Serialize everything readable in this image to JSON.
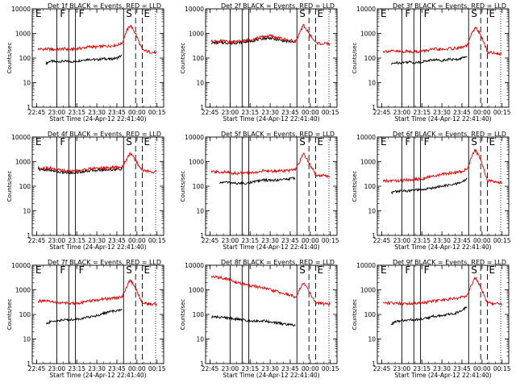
{
  "figure": {
    "x_axis_label": "Start Time (24-Apr-12 22:41:40)",
    "y_axis_label": "Counts/sec",
    "x_tick_labels": [
      "22:45",
      "23:00",
      "23:15",
      "23:30",
      "23:45",
      "00:00",
      "00:15"
    ],
    "y_tick_labels": [
      "1",
      "10",
      "100",
      "1000",
      "10000"
    ],
    "colors": {
      "events": "#000000",
      "lld": "#e00000",
      "background": "#ffffff"
    }
  },
  "chart_data": [
    {
      "type": "line",
      "title": "Det 1f BLACK = Events, RED = LLD",
      "xlabel": "Start Time (24-Apr-12 22:41:40)",
      "ylabel": "Counts/sec",
      "y_scale": "log",
      "ylim": [
        1,
        10000
      ],
      "x_ticks": [
        "22:45",
        "23:00",
        "23:15",
        "23:30",
        "23:45",
        "00:00",
        "00:15"
      ],
      "series": [
        {
          "name": "Events",
          "color": "#000000",
          "x": [
            "22:52",
            "22:55",
            "23:00",
            "23:05",
            "23:10",
            "23:15",
            "23:20",
            "23:25",
            "23:30",
            "23:35",
            "23:40",
            "23:45",
            "23:49"
          ],
          "values": [
            60,
            75,
            70,
            75,
            70,
            75,
            85,
            90,
            85,
            95,
            90,
            100,
            130
          ]
        },
        {
          "name": "LLD",
          "color": "#e00000",
          "x": [
            "22:46",
            "22:55",
            "23:00",
            "23:05",
            "23:10",
            "23:15",
            "23:20",
            "23:25",
            "23:30",
            "23:35",
            "23:40",
            "23:45",
            "23:49",
            "23:52",
            "23:55",
            "23:59",
            "00:04",
            "00:09",
            "00:15"
          ],
          "values": [
            230,
            230,
            220,
            240,
            220,
            240,
            260,
            290,
            280,
            300,
            310,
            340,
            400,
            1200,
            2200,
            1000,
            210,
            180,
            160
          ]
        }
      ],
      "region_labels": [
        "E",
        "F",
        "F",
        "S",
        "E"
      ]
    },
    {
      "type": "line",
      "title": "Det 2f BLACK = Events, RED = LLD",
      "xlabel": "Start Time (24-Apr-12 22:41:40)",
      "ylabel": "Counts/sec",
      "y_scale": "log",
      "ylim": [
        1,
        10000
      ],
      "x_ticks": [
        "22:45",
        "23:00",
        "23:15",
        "23:30",
        "23:45",
        "00:00",
        "00:15"
      ],
      "series": [
        {
          "name": "Events",
          "color": "#000000",
          "x": [
            "22:46",
            "22:55",
            "23:00",
            "23:05",
            "23:10",
            "23:15",
            "23:20",
            "23:25",
            "23:30",
            "23:35",
            "23:40",
            "23:45",
            "23:49"
          ],
          "values": [
            420,
            420,
            400,
            420,
            450,
            480,
            550,
            620,
            650,
            560,
            500,
            460,
            420
          ]
        },
        {
          "name": "LLD",
          "color": "#e00000",
          "x": [
            "22:46",
            "22:55",
            "23:00",
            "23:05",
            "23:10",
            "23:15",
            "23:20",
            "23:25",
            "23:30",
            "23:35",
            "23:40",
            "23:45",
            "23:49",
            "23:52",
            "23:55",
            "23:59",
            "00:04",
            "00:09",
            "00:15"
          ],
          "values": [
            480,
            480,
            450,
            470,
            500,
            560,
            650,
            750,
            800,
            680,
            580,
            520,
            480,
            1000,
            2200,
            1000,
            420,
            380,
            380
          ]
        }
      ],
      "region_labels": [
        "S",
        "E"
      ]
    },
    {
      "type": "line",
      "title": "Det 3f BLACK = Events, RED = LLD",
      "xlabel": "Start Time (24-Apr-12 22:41:40)",
      "ylabel": "Counts/sec",
      "y_scale": "log",
      "ylim": [
        1,
        10000
      ],
      "x_ticks": [
        "22:45",
        "23:00",
        "23:15",
        "23:30",
        "23:45",
        "00:00",
        "00:15"
      ],
      "series": [
        {
          "name": "Events",
          "color": "#000000",
          "x": [
            "22:52",
            "22:55",
            "23:00",
            "23:05",
            "23:10",
            "23:15",
            "23:20",
            "23:25",
            "23:30",
            "23:35",
            "23:40",
            "23:45",
            "23:49"
          ],
          "values": [
            55,
            65,
            65,
            70,
            65,
            70,
            80,
            85,
            80,
            90,
            85,
            100,
            120
          ]
        },
        {
          "name": "LLD",
          "color": "#e00000",
          "x": [
            "22:46",
            "22:55",
            "23:00",
            "23:05",
            "23:10",
            "23:15",
            "23:20",
            "23:25",
            "23:30",
            "23:35",
            "23:40",
            "23:45",
            "23:49",
            "23:52",
            "23:55",
            "23:59",
            "00:04",
            "00:09",
            "00:15"
          ],
          "values": [
            190,
            190,
            180,
            190,
            180,
            190,
            210,
            230,
            220,
            240,
            250,
            270,
            320,
            900,
            1800,
            900,
            180,
            160,
            150
          ]
        }
      ],
      "region_labels": [
        "E",
        "F",
        "F",
        "S",
        "E"
      ]
    },
    {
      "type": "line",
      "title": "Det 4f BLACK = Events, RED = LLD",
      "xlabel": "Start Time (24-Apr-12 22:41:40)",
      "ylabel": "Counts/sec",
      "y_scale": "log",
      "ylim": [
        1,
        10000
      ],
      "x_ticks": [
        "22:45",
        "23:00",
        "23:15",
        "23:30",
        "23:45",
        "00:00",
        "00:15"
      ],
      "series": [
        {
          "name": "Events",
          "color": "#000000",
          "x": [
            "22:46",
            "22:55",
            "23:00",
            "23:05",
            "23:10",
            "23:15",
            "23:20",
            "23:25",
            "23:30",
            "23:35",
            "23:40",
            "23:45",
            "23:49"
          ],
          "values": [
            480,
            450,
            390,
            360,
            350,
            360,
            400,
            430,
            450,
            460,
            470,
            480,
            500
          ]
        },
        {
          "name": "LLD",
          "color": "#e00000",
          "x": [
            "22:46",
            "22:55",
            "23:00",
            "23:05",
            "23:10",
            "23:15",
            "23:20",
            "23:25",
            "23:30",
            "23:35",
            "23:40",
            "23:45",
            "23:49",
            "23:52",
            "23:55",
            "23:59",
            "00:04",
            "00:09",
            "00:15"
          ],
          "values": [
            560,
            540,
            470,
            430,
            420,
            430,
            470,
            510,
            540,
            560,
            570,
            580,
            600,
            1200,
            2300,
            1100,
            450,
            400,
            380
          ]
        }
      ],
      "region_labels": [
        "E",
        "F",
        "S",
        "E"
      ]
    },
    {
      "type": "line",
      "title": "Det 5f BLACK = Events, RED = LLD",
      "xlabel": "Start Time (24-Apr-12 22:41:40)",
      "ylabel": "Counts/sec",
      "y_scale": "log",
      "ylim": [
        1,
        10000
      ],
      "x_ticks": [
        "22:45",
        "23:00",
        "23:15",
        "23:30",
        "23:45",
        "00:00",
        "00:15"
      ],
      "series": [
        {
          "name": "Events",
          "color": "#000000",
          "x": [
            "22:52",
            "22:55",
            "23:00",
            "23:05",
            "23:10",
            "23:15",
            "23:20",
            "23:25",
            "23:30",
            "23:35",
            "23:40",
            "23:45",
            "23:49"
          ],
          "values": [
            130,
            150,
            140,
            130,
            130,
            140,
            160,
            180,
            170,
            180,
            190,
            200,
            220
          ]
        },
        {
          "name": "LLD",
          "color": "#e00000",
          "x": [
            "22:46",
            "22:55",
            "23:00",
            "23:05",
            "23:10",
            "23:15",
            "23:20",
            "23:25",
            "23:30",
            "23:35",
            "23:40",
            "23:45",
            "23:49",
            "23:52",
            "23:55",
            "23:59",
            "00:04",
            "00:09",
            "00:15"
          ],
          "values": [
            380,
            380,
            350,
            340,
            340,
            350,
            380,
            420,
            410,
            420,
            430,
            440,
            460,
            1000,
            2100,
            900,
            300,
            270,
            260
          ]
        }
      ],
      "region_labels": [
        "S",
        "E"
      ]
    },
    {
      "type": "line",
      "title": "Det 6f BLACK = Events, RED = LLD",
      "xlabel": "Start Time (24-Apr-12 22:41:40)",
      "ylabel": "Counts/sec",
      "y_scale": "log",
      "ylim": [
        1,
        10000
      ],
      "x_ticks": [
        "22:45",
        "23:00",
        "23:15",
        "23:30",
        "23:45",
        "00:00",
        "00:15"
      ],
      "series": [
        {
          "name": "Events",
          "color": "#000000",
          "x": [
            "22:52",
            "22:55",
            "23:00",
            "23:05",
            "23:10",
            "23:15",
            "23:20",
            "23:25",
            "23:30",
            "23:35",
            "23:40",
            "23:45",
            "23:49"
          ],
          "values": [
            55,
            60,
            65,
            65,
            70,
            70,
            80,
            90,
            100,
            110,
            120,
            150,
            200
          ]
        },
        {
          "name": "LLD",
          "color": "#e00000",
          "x": [
            "22:46",
            "22:55",
            "23:00",
            "23:05",
            "23:10",
            "23:15",
            "23:20",
            "23:25",
            "23:30",
            "23:35",
            "23:40",
            "23:45",
            "23:49",
            "23:52",
            "23:55",
            "23:59",
            "00:04",
            "00:09",
            "00:15"
          ],
          "values": [
            160,
            170,
            170,
            180,
            190,
            200,
            230,
            270,
            300,
            330,
            360,
            400,
            500,
            1500,
            3000,
            1200,
            170,
            150,
            140
          ]
        }
      ],
      "region_labels": [
        "E",
        "F",
        "F",
        "S",
        "E"
      ]
    },
    {
      "type": "line",
      "title": "Det 7f BLACK = Events, RED = LLD",
      "xlabel": "Start Time (24-Apr-12 22:41:40)",
      "ylabel": "Counts/sec",
      "y_scale": "log",
      "ylim": [
        1,
        10000
      ],
      "x_ticks": [
        "22:45",
        "23:00",
        "23:15",
        "23:30",
        "23:45",
        "00:00",
        "00:15"
      ],
      "series": [
        {
          "name": "Events",
          "color": "#000000",
          "x": [
            "22:52",
            "22:55",
            "23:00",
            "23:05",
            "23:10",
            "23:15",
            "23:20",
            "23:25",
            "23:30",
            "23:35",
            "23:40",
            "23:45",
            "23:49"
          ],
          "values": [
            40,
            50,
            55,
            60,
            60,
            65,
            70,
            80,
            90,
            110,
            130,
            140,
            160
          ]
        },
        {
          "name": "LLD",
          "color": "#e00000",
          "x": [
            "22:46",
            "22:55",
            "23:00",
            "23:05",
            "23:10",
            "23:15",
            "23:20",
            "23:25",
            "23:30",
            "23:35",
            "23:40",
            "23:45",
            "23:49",
            "23:52",
            "23:55",
            "23:59",
            "00:04",
            "00:09",
            "00:15"
          ],
          "values": [
            350,
            330,
            300,
            290,
            280,
            290,
            310,
            350,
            380,
            420,
            450,
            470,
            500,
            1300,
            2600,
            1100,
            300,
            270,
            260
          ]
        }
      ],
      "region_labels": [
        "E",
        "F",
        "F",
        "S",
        "E"
      ]
    },
    {
      "type": "line",
      "title": "Det 8f BLACK = Events, RED = LLD",
      "xlabel": "Start Time (24-Apr-12 22:41:40)",
      "ylabel": "Counts/sec",
      "y_scale": "log",
      "ylim": [
        1,
        10000
      ],
      "x_ticks": [
        "22:45",
        "23:00",
        "23:15",
        "23:30",
        "23:45",
        "00:00",
        "00:15"
      ],
      "series": [
        {
          "name": "Events",
          "color": "#000000",
          "x": [
            "22:46",
            "22:55",
            "23:00",
            "23:05",
            "23:10",
            "23:15",
            "23:20",
            "23:25",
            "23:30",
            "23:35",
            "23:40",
            "23:45",
            "23:49"
          ],
          "values": [
            80,
            75,
            70,
            65,
            60,
            55,
            55,
            55,
            50,
            45,
            40,
            38,
            35
          ]
        },
        {
          "name": "LLD",
          "color": "#e00000",
          "x": [
            "22:46",
            "22:55",
            "23:00",
            "23:05",
            "23:10",
            "23:15",
            "23:20",
            "23:25",
            "23:30",
            "23:35",
            "23:40",
            "23:45",
            "23:49",
            "23:52",
            "23:55",
            "23:59",
            "00:04",
            "00:09",
            "00:15"
          ],
          "values": [
            3500,
            3000,
            2500,
            2000,
            1700,
            1500,
            1300,
            1200,
            1000,
            850,
            700,
            600,
            500,
            1000,
            2000,
            900,
            300,
            270,
            260
          ]
        }
      ],
      "region_labels": [
        "S",
        "E"
      ]
    },
    {
      "type": "line",
      "title": "Det 9f BLACK = Events, RED = LLD",
      "xlabel": "Start Time (24-Apr-12 22:41:40)",
      "ylabel": "Counts/sec",
      "y_scale": "log",
      "ylim": [
        1,
        10000
      ],
      "x_ticks": [
        "22:45",
        "23:00",
        "23:15",
        "23:30",
        "23:45",
        "00:00",
        "00:15"
      ],
      "series": [
        {
          "name": "Events",
          "color": "#000000",
          "x": [
            "22:52",
            "22:55",
            "23:00",
            "23:05",
            "23:10",
            "23:15",
            "23:20",
            "23:25",
            "23:30",
            "23:35",
            "23:40",
            "23:45",
            "23:49"
          ],
          "values": [
            40,
            50,
            55,
            60,
            60,
            65,
            75,
            85,
            90,
            100,
            110,
            150,
            200
          ]
        },
        {
          "name": "LLD",
          "color": "#e00000",
          "x": [
            "22:46",
            "22:55",
            "23:00",
            "23:05",
            "23:10",
            "23:15",
            "23:20",
            "23:25",
            "23:30",
            "23:35",
            "23:40",
            "23:45",
            "23:49",
            "23:52",
            "23:55",
            "23:59",
            "00:04",
            "00:09",
            "00:15"
          ],
          "values": [
            300,
            290,
            280,
            280,
            290,
            300,
            320,
            360,
            380,
            410,
            450,
            500,
            600,
            1600,
            3200,
            1300,
            300,
            270,
            260
          ]
        }
      ],
      "region_labels": [
        "E",
        "F",
        "F",
        "S",
        "E"
      ]
    }
  ]
}
